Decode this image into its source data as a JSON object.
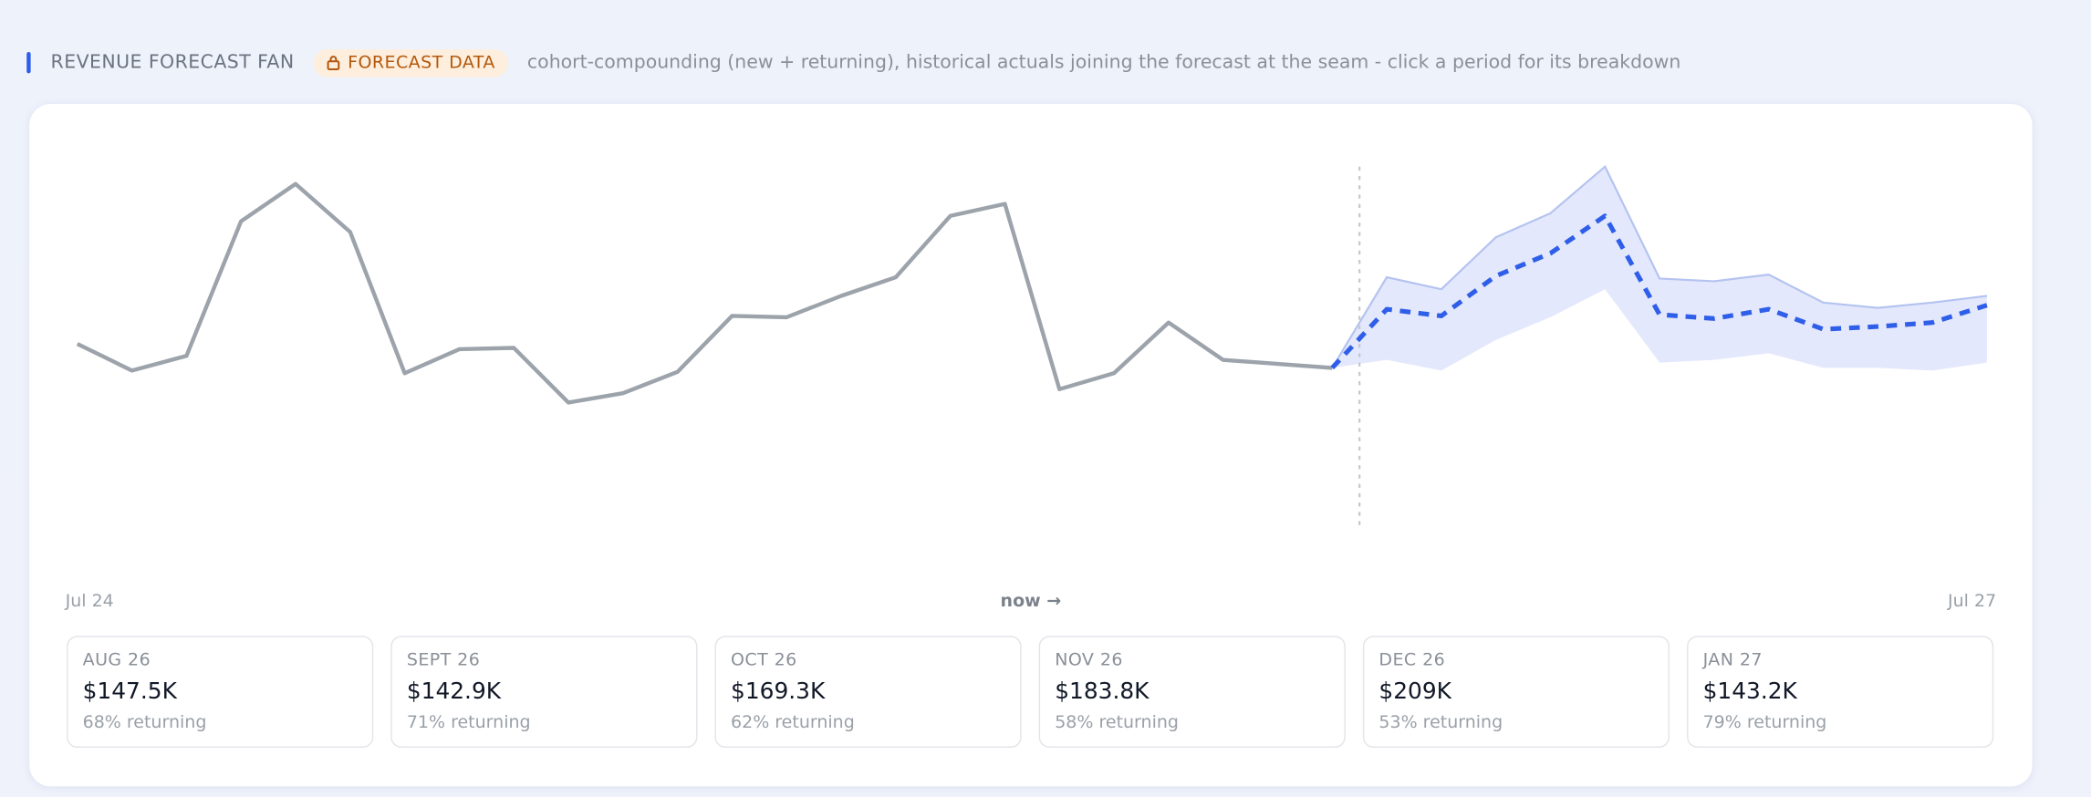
{
  "header": {
    "title": "REVENUE FORECAST FAN",
    "badge": "FORECAST DATA",
    "description": "cohort-compounding (new + returning), historical actuals joining the forecast at the seam - click a period for its breakdown"
  },
  "chart_data": {
    "type": "line",
    "categories": [
      "Jul 24",
      null,
      null,
      null,
      null,
      null,
      null,
      null,
      null,
      null,
      null,
      null,
      null,
      null,
      null,
      null,
      null,
      null,
      null,
      null,
      null,
      null,
      null,
      null,
      null,
      null,
      null,
      null,
      null,
      null,
      null,
      null,
      null,
      null,
      null,
      "Jul 27"
    ],
    "annotation": "now →",
    "ylim": [
      0,
      300
    ],
    "actual": {
      "color": "#9ca3ab",
      "values": [
        142,
        122,
        133,
        234,
        262,
        226,
        120,
        138,
        139,
        98,
        105,
        121,
        163,
        162,
        178,
        192,
        238,
        247,
        108,
        120,
        158,
        130,
        127,
        124,
        null,
        null,
        null,
        null,
        null,
        null,
        null,
        null,
        null,
        null,
        null,
        null
      ]
    },
    "forecast": {
      "color": "#2f5fe8",
      "band_color": "#e4e8fc",
      "values": [
        null,
        null,
        null,
        null,
        null,
        null,
        null,
        null,
        null,
        null,
        null,
        null,
        null,
        null,
        null,
        null,
        null,
        null,
        null,
        null,
        null,
        null,
        null,
        124,
        168,
        163,
        193,
        210,
        238,
        164,
        161,
        168,
        153,
        155,
        158,
        171
      ],
      "upper": [
        null,
        null,
        null,
        null,
        null,
        null,
        null,
        null,
        null,
        null,
        null,
        null,
        null,
        null,
        null,
        null,
        null,
        null,
        null,
        null,
        null,
        null,
        null,
        124,
        192,
        183,
        222,
        240,
        275,
        191,
        189,
        194,
        173,
        169,
        173,
        178
      ],
      "lower": [
        null,
        null,
        null,
        null,
        null,
        null,
        null,
        null,
        null,
        null,
        null,
        null,
        null,
        null,
        null,
        null,
        null,
        null,
        null,
        null,
        null,
        null,
        null,
        124,
        130,
        122,
        145,
        162,
        183,
        128,
        130,
        135,
        124,
        124,
        122,
        128
      ]
    }
  },
  "periods": [
    {
      "period": "AUG 26",
      "value": "$147.5K",
      "returning": "68% returning"
    },
    {
      "period": "SEPT 26",
      "value": "$142.9K",
      "returning": "71% returning"
    },
    {
      "period": "OCT 26",
      "value": "$169.3K",
      "returning": "62% returning"
    },
    {
      "period": "NOV 26",
      "value": "$183.8K",
      "returning": "58% returning"
    },
    {
      "period": "DEC 26",
      "value": "$209K",
      "returning": "53% returning"
    },
    {
      "period": "JAN 27",
      "value": "$143.2K",
      "returning": "79% returning"
    }
  ]
}
